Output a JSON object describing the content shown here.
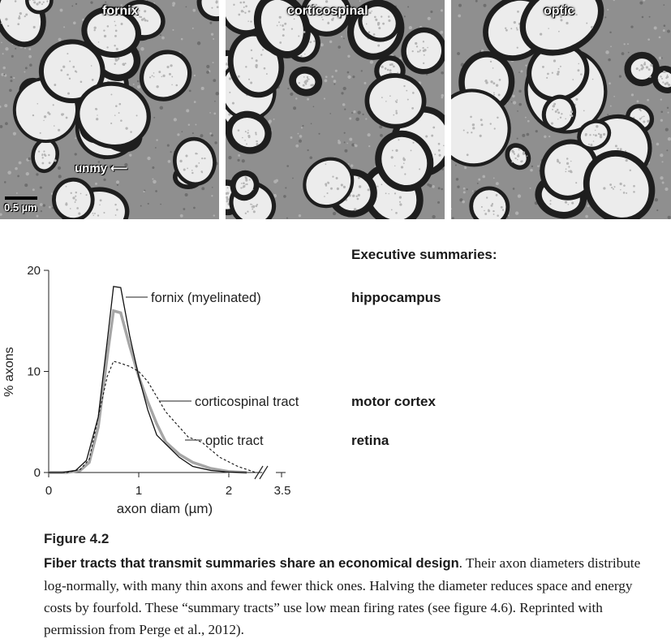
{
  "micrographs": {
    "panels": [
      {
        "label": "fornix"
      },
      {
        "label": "corticospinal"
      },
      {
        "label": "optic"
      }
    ],
    "scale_bar_label": "0.5 µm",
    "unmy_label": "unmy"
  },
  "summaries": {
    "title": "Executive summaries:",
    "items": [
      "hippocampus",
      "motor cortex",
      "retina"
    ]
  },
  "chart_data": {
    "type": "line",
    "xlabel": "axon diam (µm)",
    "ylabel": "% axons",
    "x_ticks": [
      "0",
      "1",
      "2",
      "3.5"
    ],
    "y_ticks": [
      "0",
      "10",
      "20"
    ],
    "xlim": [
      0,
      3.5
    ],
    "ylim": [
      0,
      20
    ],
    "axis_break_between": [
      2.3,
      3.4
    ],
    "series": [
      {
        "name": "fornix (myelinated)",
        "style": "thin-solid-black",
        "x": [
          0.0,
          0.15,
          0.3,
          0.42,
          0.55,
          0.65,
          0.72,
          0.8,
          0.9,
          1.0,
          1.1,
          1.2,
          1.3,
          1.45,
          1.6,
          1.8,
          2.0,
          2.2
        ],
        "y": [
          0.0,
          0.0,
          0.2,
          1.2,
          5.5,
          13.0,
          18.4,
          18.3,
          13.5,
          9.5,
          6.2,
          3.7,
          2.8,
          1.5,
          0.6,
          0.2,
          0.05,
          0.0
        ]
      },
      {
        "name": "optic tract",
        "style": "thick-grey",
        "x": [
          0.0,
          0.2,
          0.35,
          0.45,
          0.55,
          0.65,
          0.72,
          0.8,
          0.9,
          1.0,
          1.1,
          1.2,
          1.3,
          1.45,
          1.6,
          1.8,
          2.0,
          2.2
        ],
        "y": [
          0.0,
          0.0,
          0.2,
          1.0,
          4.5,
          11.5,
          16.0,
          15.8,
          12.5,
          9.5,
          7.0,
          4.8,
          3.0,
          1.8,
          1.0,
          0.4,
          0.1,
          0.0
        ]
      },
      {
        "name": "corticospinal tract",
        "style": "dashed-black",
        "x": [
          0.0,
          0.2,
          0.35,
          0.45,
          0.55,
          0.65,
          0.72,
          0.8,
          0.9,
          1.0,
          1.1,
          1.2,
          1.3,
          1.4,
          1.55,
          1.7,
          1.9,
          2.1,
          2.3
        ],
        "y": [
          0.0,
          0.0,
          0.3,
          1.3,
          5.5,
          9.5,
          11.0,
          10.8,
          10.5,
          10.0,
          9.0,
          7.5,
          6.0,
          5.0,
          3.5,
          3.0,
          1.5,
          0.6,
          0.0
        ]
      }
    ],
    "annotations": [
      {
        "text": "fornix (myelinated)"
      },
      {
        "text": "corticospinal tract"
      },
      {
        "text": "optic tract"
      }
    ]
  },
  "caption": {
    "figure_number": "Figure 4.2",
    "lead": "Fiber tracts that transmit summaries share an economical design",
    "body": ". Their axon diameters distribute log-normally, with many thin axons and fewer thick ones. Halving the diameter reduces space and energy costs by fourfold. These “summary tracts” use low mean firing rates (see figure 4.6). Reprinted with permission from Perge et al., 2012)."
  }
}
